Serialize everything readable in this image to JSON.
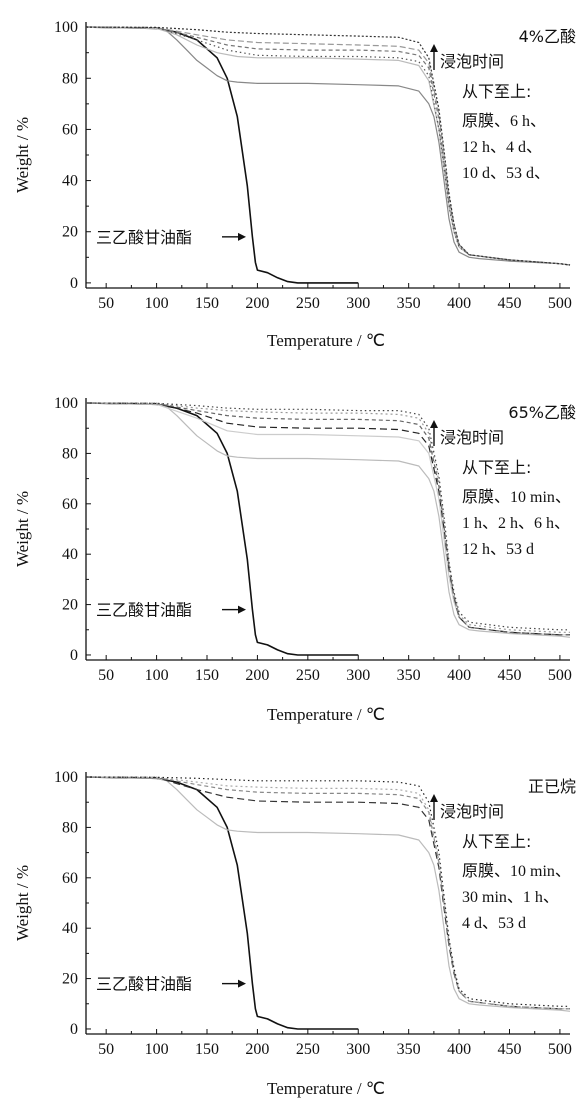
{
  "chart_data": [
    {
      "type": "line",
      "title": "4%乙酸",
      "xlabel": "Temperature / ℃",
      "ylabel": "Weight / %",
      "xlim": [
        30,
        510
      ],
      "ylim": [
        -2,
        102
      ],
      "xticks": [
        "50",
        "100",
        "150",
        "200",
        "250",
        "300",
        "350",
        "400",
        "450",
        "500"
      ],
      "yticks": [
        "0",
        "20",
        "40",
        "60",
        "80",
        "100"
      ],
      "annotations": {
        "arrow_text": "浸泡时间",
        "order_label": "从下至上:",
        "order_lines": [
          "原膜、6 h、",
          "12 h、4 d、",
          "10 d、53 d、"
        ],
        "triacetin_label": "三乙酸甘油酯"
      },
      "series": [
        {
          "color": "#111111",
          "dash": "solid",
          "x": [
            30,
            100,
            120,
            140,
            160,
            170,
            180,
            190,
            195,
            198,
            200,
            210,
            220,
            230,
            240,
            300
          ],
          "y": [
            100,
            99.5,
            98,
            95,
            88,
            80,
            65,
            38,
            18,
            8,
            5,
            4,
            2,
            0.5,
            0,
            0
          ]
        },
        {
          "color": "#888888",
          "dash": "solid",
          "x": [
            30,
            100,
            110,
            120,
            130,
            140,
            150,
            160,
            170,
            180,
            200,
            250,
            300,
            340,
            360,
            370,
            375,
            380,
            385,
            390,
            395,
            400,
            410,
            420,
            450,
            500,
            510
          ],
          "y": [
            100,
            99.5,
            98.5,
            95,
            91,
            87,
            84,
            81,
            79,
            78.5,
            78,
            78,
            77.5,
            77,
            75,
            70,
            65,
            55,
            40,
            25,
            16,
            12,
            10,
            9.5,
            8.5,
            7.5,
            7
          ]
        },
        {
          "color": "#bbbbbb",
          "dash": "solid",
          "x": [
            30,
            100,
            120,
            140,
            160,
            180,
            200,
            250,
            300,
            340,
            360,
            370,
            380,
            385,
            390,
            395,
            400,
            410,
            450,
            500,
            510
          ],
          "y": [
            100,
            99.5,
            97,
            93,
            90,
            88.5,
            88,
            88,
            87.5,
            87,
            85,
            79,
            60,
            45,
            30,
            20,
            14,
            11,
            9,
            7.5,
            7
          ]
        },
        {
          "color": "#777777",
          "dash": "4,3",
          "x": [
            30,
            100,
            140,
            170,
            200,
            250,
            300,
            340,
            360,
            370,
            380,
            385,
            390,
            395,
            400,
            410,
            450,
            500,
            510
          ],
          "y": [
            100,
            99.8,
            96,
            93,
            91.5,
            91,
            91,
            90.5,
            89,
            84,
            64,
            48,
            32,
            22,
            15,
            11,
            9,
            7.5,
            7
          ]
        },
        {
          "color": "#999999",
          "dash": "6,3",
          "x": [
            30,
            100,
            140,
            170,
            200,
            250,
            300,
            340,
            360,
            370,
            380,
            385,
            390,
            395,
            400,
            410,
            450,
            500,
            510
          ],
          "y": [
            100,
            99.8,
            97,
            95,
            94,
            93.5,
            93,
            92.5,
            91,
            86,
            66,
            50,
            34,
            23,
            15,
            11,
            9,
            7.5,
            7
          ]
        },
        {
          "color": "#555555",
          "dash": "1.5,3",
          "x": [
            30,
            100,
            140,
            170,
            200,
            250,
            300,
            340,
            360,
            370,
            380,
            385,
            390,
            395,
            400,
            410,
            450,
            500,
            510
          ],
          "y": [
            100,
            99.8,
            95,
            91,
            89,
            88.5,
            88.5,
            88,
            86.5,
            81,
            60,
            45,
            30,
            20,
            14,
            11,
            9,
            7.5,
            7
          ]
        },
        {
          "color": "#333333",
          "dash": "2,2",
          "x": [
            30,
            100,
            140,
            170,
            200,
            250,
            300,
            340,
            360,
            370,
            380,
            385,
            390,
            395,
            400,
            410,
            450,
            500,
            510
          ],
          "y": [
            100,
            99.9,
            99,
            98,
            97.5,
            97,
            96.5,
            96,
            94,
            88,
            68,
            52,
            35,
            23,
            15,
            11,
            9,
            7.5,
            7
          ]
        }
      ]
    },
    {
      "type": "line",
      "title": "65%乙酸",
      "xlabel": "Temperature / ℃",
      "ylabel": "Weight / %",
      "xlim": [
        30,
        510
      ],
      "ylim": [
        -2,
        102
      ],
      "xticks": [
        "50",
        "100",
        "150",
        "200",
        "250",
        "300",
        "350",
        "400",
        "450",
        "500"
      ],
      "yticks": [
        "0",
        "20",
        "40",
        "60",
        "80",
        "100"
      ],
      "annotations": {
        "arrow_text": "浸泡时间",
        "order_label": "从下至上:",
        "order_lines": [
          "原膜、10 min、",
          "1 h、2 h、6 h、",
          "12 h、53 d"
        ],
        "triacetin_label": "三乙酸甘油酯"
      },
      "series": [
        {
          "color": "#111111",
          "dash": "solid",
          "x": [
            30,
            100,
            120,
            140,
            160,
            170,
            180,
            190,
            195,
            198,
            200,
            210,
            220,
            230,
            240,
            300
          ],
          "y": [
            100,
            99.5,
            98,
            95,
            88,
            80,
            65,
            38,
            18,
            8,
            5,
            4,
            2,
            0.5,
            0,
            0
          ]
        },
        {
          "color": "#bbbbbb",
          "dash": "solid",
          "x": [
            30,
            100,
            110,
            120,
            130,
            140,
            150,
            160,
            170,
            180,
            200,
            250,
            300,
            340,
            360,
            370,
            375,
            380,
            385,
            390,
            395,
            400,
            410,
            420,
            450,
            500,
            510
          ],
          "y": [
            100,
            99.5,
            98.5,
            95,
            91,
            87,
            84,
            81,
            79,
            78.5,
            78,
            78,
            77.5,
            77,
            75,
            70,
            65,
            55,
            40,
            25,
            16,
            12,
            10,
            9.5,
            8.5,
            7.5,
            7
          ]
        },
        {
          "color": "#cccccc",
          "dash": "solid",
          "x": [
            30,
            100,
            140,
            170,
            200,
            250,
            300,
            340,
            360,
            370,
            380,
            385,
            390,
            395,
            400,
            410,
            450,
            500,
            510
          ],
          "y": [
            100,
            99.5,
            94,
            89,
            87.5,
            87.5,
            87,
            86.5,
            85,
            80,
            62,
            46,
            31,
            21,
            15,
            11,
            9,
            8,
            8
          ]
        },
        {
          "color": "#222222",
          "dash": "7,4",
          "x": [
            30,
            100,
            140,
            170,
            200,
            250,
            300,
            340,
            360,
            370,
            380,
            385,
            390,
            395,
            400,
            410,
            450,
            500,
            510
          ],
          "y": [
            100,
            99.8,
            96,
            92,
            90.5,
            90,
            90,
            89.5,
            88,
            83,
            65,
            50,
            34,
            23,
            15,
            11,
            9,
            8,
            8
          ]
        },
        {
          "color": "#666666",
          "dash": "4,3",
          "x": [
            30,
            100,
            140,
            170,
            200,
            250,
            300,
            340,
            360,
            370,
            380,
            385,
            390,
            395,
            400,
            410,
            450,
            500,
            510
          ],
          "y": [
            100,
            99.8,
            97,
            95,
            94,
            93.5,
            93.5,
            93,
            91.5,
            86,
            67,
            51,
            35,
            23,
            15,
            11,
            9,
            8,
            8
          ]
        },
        {
          "color": "#999999",
          "dash": "2,3",
          "x": [
            30,
            100,
            140,
            170,
            200,
            250,
            300,
            340,
            360,
            370,
            380,
            385,
            390,
            395,
            400,
            410,
            450,
            500,
            510
          ],
          "y": [
            100,
            99.9,
            98,
            97,
            96.5,
            96,
            96,
            95.5,
            94,
            88,
            69,
            53,
            36,
            24,
            16,
            12,
            10,
            9,
            9
          ]
        },
        {
          "color": "#444444",
          "dash": "1.5,3",
          "x": [
            30,
            100,
            140,
            170,
            200,
            250,
            300,
            340,
            360,
            370,
            380,
            385,
            390,
            395,
            400,
            410,
            450,
            500,
            510
          ],
          "y": [
            100,
            99.9,
            99,
            98,
            97.5,
            97.5,
            97,
            97,
            95.5,
            90,
            71,
            55,
            37,
            25,
            17,
            13,
            11,
            10,
            10
          ]
        }
      ]
    },
    {
      "type": "line",
      "title": "正已烷",
      "xlabel": "Temperature / ℃",
      "ylabel": "Weight / %",
      "xlim": [
        30,
        510
      ],
      "ylim": [
        -2,
        102
      ],
      "xticks": [
        "50",
        "100",
        "150",
        "200",
        "250",
        "300",
        "350",
        "400",
        "450",
        "500"
      ],
      "yticks": [
        "0",
        "20",
        "40",
        "60",
        "80",
        "100"
      ],
      "annotations": {
        "arrow_text": "浸泡时间",
        "order_label": "从下至上:",
        "order_lines": [
          "原膜、10 min、",
          "30 min、1 h、",
          "4 d、53 d"
        ],
        "triacetin_label": "三乙酸甘油酯"
      },
      "series": [
        {
          "color": "#111111",
          "dash": "solid",
          "x": [
            30,
            100,
            120,
            140,
            160,
            170,
            180,
            190,
            195,
            198,
            200,
            210,
            220,
            230,
            240,
            300
          ],
          "y": [
            100,
            99.5,
            98,
            95,
            88,
            80,
            65,
            38,
            18,
            8,
            5,
            4,
            2,
            0.5,
            0,
            0
          ]
        },
        {
          "color": "#bbbbbb",
          "dash": "solid",
          "x": [
            30,
            100,
            110,
            120,
            130,
            140,
            150,
            160,
            170,
            180,
            200,
            250,
            300,
            340,
            360,
            370,
            375,
            380,
            385,
            390,
            395,
            400,
            410,
            420,
            450,
            500,
            510
          ],
          "y": [
            100,
            99.5,
            98.5,
            95,
            91,
            87,
            84,
            81,
            79,
            78.5,
            78,
            78,
            77.5,
            77,
            75,
            70,
            65,
            55,
            40,
            25,
            16,
            12,
            10,
            9.5,
            8.5,
            7.5,
            7
          ]
        },
        {
          "color": "#333333",
          "dash": "7,4",
          "x": [
            30,
            100,
            140,
            170,
            200,
            250,
            300,
            340,
            360,
            370,
            380,
            385,
            390,
            395,
            400,
            410,
            450,
            500,
            510
          ],
          "y": [
            100,
            99.8,
            95,
            92,
            90.5,
            90,
            90,
            89.5,
            88,
            83,
            64,
            48,
            33,
            22,
            15,
            11,
            9,
            8,
            8
          ]
        },
        {
          "color": "#888888",
          "dash": "4,3",
          "x": [
            30,
            100,
            140,
            170,
            200,
            250,
            300,
            340,
            360,
            370,
            380,
            385,
            390,
            395,
            400,
            410,
            450,
            500,
            510
          ],
          "y": [
            100,
            99.8,
            97,
            95,
            94,
            93.5,
            93.5,
            93,
            91.5,
            86,
            66,
            50,
            34,
            23,
            15,
            11,
            9,
            8,
            8
          ]
        },
        {
          "color": "#aaaaaa",
          "dash": "2,3",
          "x": [
            30,
            100,
            140,
            170,
            200,
            250,
            300,
            340,
            360,
            370,
            380,
            385,
            390,
            395,
            400,
            410,
            450,
            500,
            510
          ],
          "y": [
            100,
            99.9,
            98,
            96.5,
            96,
            95.5,
            95.5,
            95,
            93.5,
            87,
            67,
            51,
            35,
            23,
            15,
            11,
            9,
            8,
            8
          ]
        },
        {
          "color": "#222222",
          "dash": "1.5,3",
          "x": [
            30,
            100,
            140,
            170,
            200,
            250,
            300,
            340,
            360,
            370,
            380,
            385,
            390,
            395,
            400,
            410,
            450,
            500,
            510
          ],
          "y": [
            100,
            99.9,
            99.5,
            99,
            98.5,
            98.5,
            98.5,
            98,
            96.5,
            90,
            70,
            53,
            36,
            24,
            16,
            12,
            10,
            9,
            9
          ]
        }
      ]
    }
  ]
}
